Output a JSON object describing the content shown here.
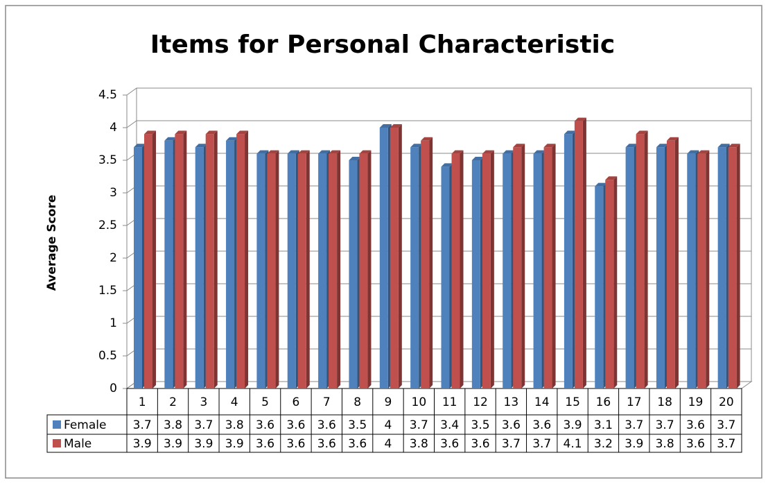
{
  "chart_data": {
    "type": "bar",
    "title": "Items for Personal Characteristic",
    "y_label": "Average Score",
    "categories": [
      "1",
      "2",
      "3",
      "4",
      "5",
      "6",
      "7",
      "8",
      "9",
      "10",
      "11",
      "12",
      "13",
      "14",
      "15",
      "16",
      "17",
      "18",
      "19",
      "20"
    ],
    "series": [
      {
        "name": "Female",
        "color": "#4f81bd",
        "values": [
          3.7,
          3.8,
          3.7,
          3.8,
          3.6,
          3.6,
          3.6,
          3.5,
          4,
          3.7,
          3.4,
          3.5,
          3.6,
          3.6,
          3.9,
          3.1,
          3.7,
          3.7,
          3.6,
          3.7
        ]
      },
      {
        "name": "Male",
        "color": "#c0504d",
        "values": [
          3.9,
          3.9,
          3.9,
          3.9,
          3.6,
          3.6,
          3.6,
          3.6,
          4,
          3.8,
          3.6,
          3.6,
          3.7,
          3.7,
          4.1,
          3.2,
          3.9,
          3.8,
          3.6,
          3.7
        ]
      }
    ],
    "ylim": [
      0,
      4.5
    ],
    "yticks": [
      0,
      0.5,
      1,
      1.5,
      2,
      2.5,
      3,
      3.5,
      4,
      4.5
    ],
    "grid": true,
    "data_table": true
  }
}
